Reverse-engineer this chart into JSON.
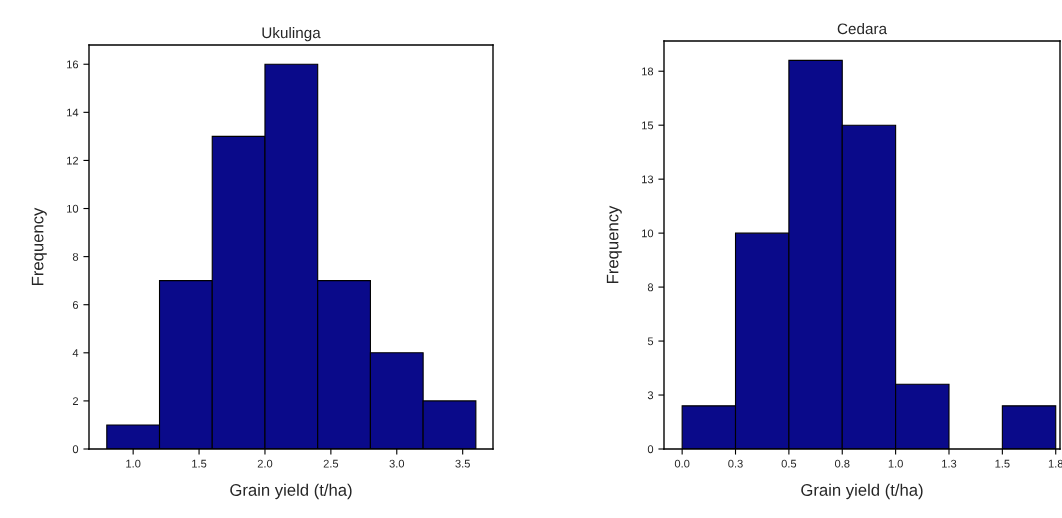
{
  "chart_data": [
    {
      "type": "histogram",
      "title": "Ukulinga",
      "xlabel": "Grain yield (t/ha)",
      "ylabel": "Frequency",
      "color": "#0a0a8a",
      "bins": [
        0.8,
        1.2,
        1.6,
        2.0,
        2.4,
        2.8,
        3.2,
        3.6
      ],
      "values": [
        1,
        7,
        13,
        16,
        7,
        4,
        2
      ],
      "xlim": [
        0.665,
        3.73
      ],
      "ylim": [
        0,
        16.8
      ],
      "xticks": [
        {
          "value": 1.0,
          "label": "1.0"
        },
        1.5,
        {
          "value": 2.0,
          "label": "2.0"
        },
        2.5,
        {
          "value": 3.0,
          "label": "3.0"
        },
        3.5
      ],
      "yticks": [
        0,
        2,
        4,
        6,
        8,
        10,
        12,
        14,
        16
      ],
      "grid": false
    },
    {
      "type": "histogram",
      "title": "Cedara",
      "xlabel": "Grain yield (t/ha)",
      "ylabel": "Frequency",
      "color": "#0a0a8a",
      "bins": [
        0,
        0.25,
        0.5,
        0.75,
        1.0,
        1.25,
        1.5,
        1.75
      ],
      "values": [
        2,
        10,
        18,
        15,
        3,
        0,
        2
      ],
      "xlim": [
        -0.085,
        1.77
      ],
      "ylim": [
        0,
        18.9
      ],
      "xticks": [
        {
          "value": 0,
          "label": "0.0"
        },
        {
          "value": 0.25,
          "label": "0.3"
        },
        {
          "value": 0.5,
          "label": "0.5"
        },
        {
          "value": 0.75,
          "label": "0.8"
        },
        {
          "value": 1.0,
          "label": "1.0"
        },
        {
          "value": 1.25,
          "label": "1.3"
        },
        {
          "value": 1.5,
          "label": "1.5"
        },
        {
          "value": 1.75,
          "label": "1.8"
        }
      ],
      "yticks": [
        0,
        {
          "value": 2.5,
          "label": "3"
        },
        5,
        {
          "value": 7.5,
          "label": "8"
        },
        10,
        {
          "value": 12.5,
          "label": "13"
        },
        15,
        {
          "value": 17.5,
          "label": "18"
        }
      ],
      "grid": false
    }
  ]
}
